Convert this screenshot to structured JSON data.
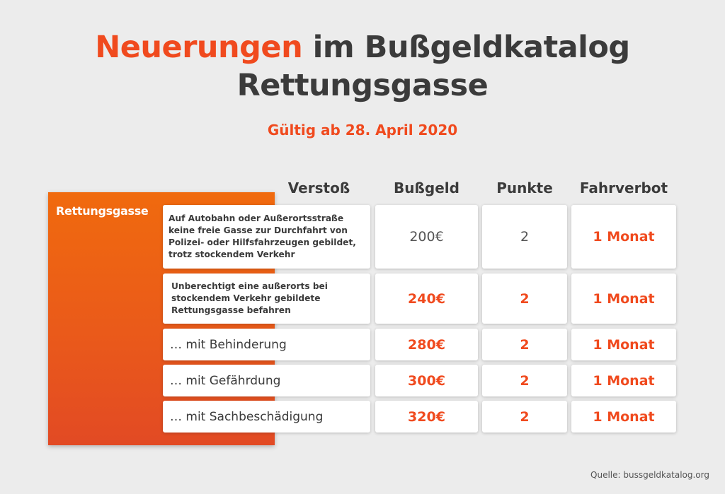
{
  "title": {
    "accent": "Neuerungen",
    "rest": "im Bußgeldkatalog",
    "line2": "Rettungsgasse"
  },
  "subtitle": "Gültig ab 28. April 2020",
  "columns": {
    "verstoss": "Verstoß",
    "bussgeld": "Bußgeld",
    "punkte": "Punkte",
    "fahrverbot": "Fahrverbot"
  },
  "category_label": "Rettungsgasse",
  "rows": [
    {
      "verstoss": "Auf Autobahn oder Außerortsstraße keine freie Gasse zur Durchfahrt von Polizei- oder Hilfsfahrzeugen gebildet, trotz stockendem Verkehr",
      "bussgeld": "200€",
      "punkte": "2",
      "fahrverbot": "1 Monat"
    },
    {
      "verstoss": "Unberechtigt eine außerorts bei stockendem Verkehr gebildete Rettungsgasse befahren",
      "bussgeld": "240€",
      "punkte": "2",
      "fahrverbot": "1 Monat"
    },
    {
      "verstoss": "… mit Behinderung",
      "bussgeld": "280€",
      "punkte": "2",
      "fahrverbot": "1 Monat"
    },
    {
      "verstoss": "… mit Gefährdung",
      "bussgeld": "300€",
      "punkte": "2",
      "fahrverbot": "1 Monat"
    },
    {
      "verstoss": "… mit Sachbeschädigung",
      "bussgeld": "320€",
      "punkte": "2",
      "fahrverbot": "1 Monat"
    }
  ],
  "source": "Quelle: bussgeldkatalog.org",
  "colors": {
    "accent": "#f04a1e",
    "text": "#3b3b3b",
    "background": "#ececec"
  }
}
